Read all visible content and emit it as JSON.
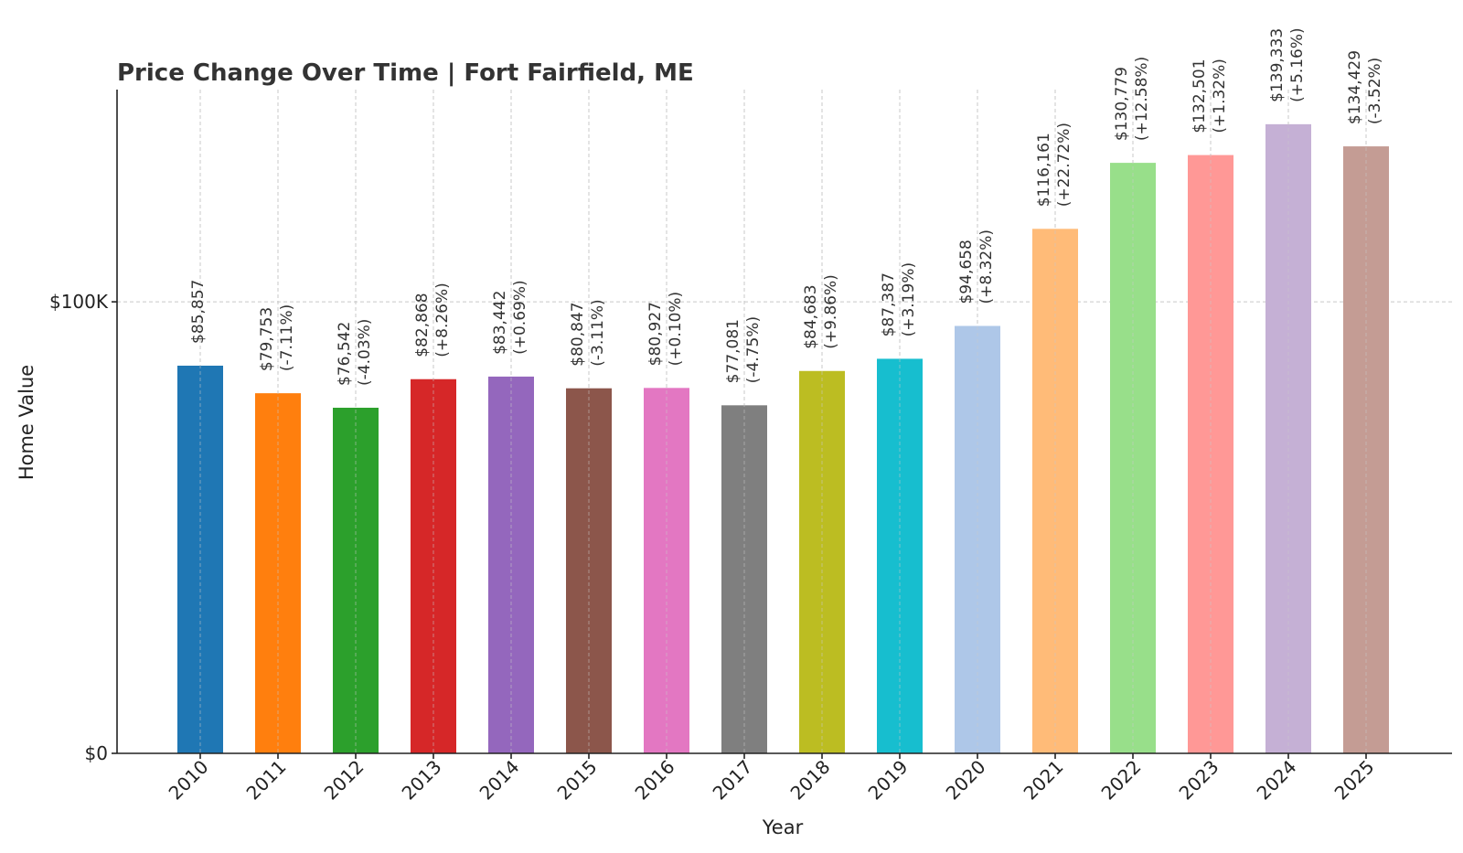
{
  "chart_data": {
    "type": "bar",
    "title": "Price Change Over Time | Fort Fairfield, ME",
    "xlabel": "Year",
    "ylabel": "Home Value",
    "ylim": [
      0,
      147000
    ],
    "yticks": [
      {
        "value": 0,
        "label": "$0"
      },
      {
        "value": 100000,
        "label": "$100K"
      }
    ],
    "grid": true,
    "categories": [
      "2010",
      "2011",
      "2012",
      "2013",
      "2014",
      "2015",
      "2016",
      "2017",
      "2018",
      "2019",
      "2020",
      "2021",
      "2022",
      "2023",
      "2024",
      "2025"
    ],
    "values": [
      85857,
      79753,
      76542,
      82868,
      83442,
      80847,
      80927,
      77081,
      84683,
      87387,
      94658,
      116161,
      130779,
      132501,
      139333,
      134429
    ],
    "value_labels": [
      "$85,857",
      "$79,753",
      "$76,542",
      "$82,868",
      "$83,442",
      "$80,847",
      "$80,927",
      "$77,081",
      "$84,683",
      "$87,387",
      "$94,658",
      "$116,161",
      "$130,779",
      "$132,501",
      "$139,333",
      "$134,429"
    ],
    "change_labels": [
      "",
      "(-7.11%)",
      "(-4.03%)",
      "(+8.26%)",
      "(+0.69%)",
      "(-3.11%)",
      "(+0.10%)",
      "(-4.75%)",
      "(+9.86%)",
      "(+3.19%)",
      "(+8.32%)",
      "(+22.72%)",
      "(+12.58%)",
      "(+1.32%)",
      "(+5.16%)",
      "(-3.52%)"
    ],
    "colors": [
      "#1f77b4",
      "#ff7f0e",
      "#2ca02c",
      "#d62728",
      "#9467bd",
      "#8c564b",
      "#e377c2",
      "#7f7f7f",
      "#bcbd22",
      "#17becf",
      "#aec7e8",
      "#ffbb78",
      "#98df8a",
      "#ff9896",
      "#c5b0d5",
      "#c49c94"
    ]
  }
}
